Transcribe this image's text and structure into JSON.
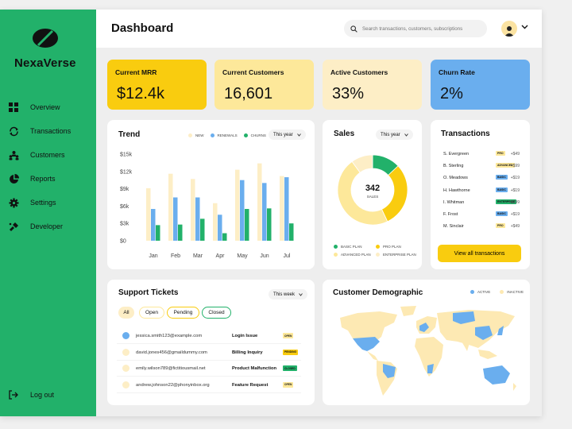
{
  "brand": {
    "name": "NexaVerse"
  },
  "sidebar": {
    "items": [
      {
        "label": "Overview",
        "icon": "grid-icon"
      },
      {
        "label": "Transactions",
        "icon": "transactions-icon"
      },
      {
        "label": "Customers",
        "icon": "customers-icon"
      },
      {
        "label": "Reports",
        "icon": "reports-icon"
      },
      {
        "label": "Settings",
        "icon": "gear-icon"
      },
      {
        "label": "Developer",
        "icon": "developer-icon"
      }
    ],
    "logout_label": "Log out"
  },
  "header": {
    "title": "Dashboard",
    "search_placeholder": "Search transactions, customers, subscriptions"
  },
  "stats": [
    {
      "label": "Current MRR",
      "value": "$12.4k",
      "color": "#f9cc0f"
    },
    {
      "label": "Current Customers",
      "value": "16,601",
      "color": "#fde89a"
    },
    {
      "label": "Active Customers",
      "value": "33%",
      "color": "#fdeec6"
    },
    {
      "label": "Churn Rate",
      "value": "2%",
      "color": "#6aaeee"
    }
  ],
  "trend": {
    "title": "Trend",
    "period": "This year",
    "legend": [
      "NEW",
      "RENEWALS",
      "CHURNS"
    ]
  },
  "chart_data": [
    {
      "type": "bar",
      "title": "Trend",
      "categories": [
        "Jan",
        "Feb",
        "Mar",
        "Apr",
        "May",
        "Jun",
        "Jul"
      ],
      "yticks": [
        "$0",
        "$3k",
        "$6k",
        "$9k",
        "$12k",
        "$15k"
      ],
      "ylim": [
        0,
        15000
      ],
      "series": [
        {
          "name": "NEW",
          "color": "#fdeec6",
          "values": [
            9100,
            11600,
            10700,
            6500,
            12300,
            13400,
            11200
          ]
        },
        {
          "name": "RENEWALS",
          "color": "#6aaeee",
          "values": [
            5500,
            7500,
            7500,
            4500,
            10500,
            10000,
            11000
          ]
        },
        {
          "name": "CHURNS",
          "color": "#22b16a",
          "values": [
            2700,
            2800,
            3800,
            1300,
            5500,
            5600,
            3000
          ]
        }
      ],
      "legend_position": "top-right",
      "grid": false
    },
    {
      "type": "pie",
      "title": "Sales",
      "center_value": "342",
      "center_label": "SALES",
      "categories": [
        "BASIC PLAN",
        "PRO PLAN",
        "ADVANCED PLAN",
        "ENTERPRISE PLAN"
      ],
      "values": [
        13,
        30,
        47,
        10
      ],
      "colors": [
        "#22b16a",
        "#f9cc0f",
        "#fde89a",
        "#fdeec6"
      ]
    }
  ],
  "sales": {
    "title": "Sales",
    "period": "This year",
    "legend": [
      "BASIC PLAN",
      "PRO PLAN",
      "ADVANCED PLAN",
      "ENTERPRISE PLAN"
    ]
  },
  "transactions": {
    "title": "Transactions",
    "button": "View all transactions",
    "rows": [
      {
        "name": "S. Evergreen",
        "plan": "PRO",
        "amount": "+$49",
        "color": "#fde89a"
      },
      {
        "name": "B. Sterling",
        "plan": "ADVANCED",
        "amount": "+$99",
        "color": "#fde89a"
      },
      {
        "name": "O. Meadows",
        "plan": "BASIC",
        "amount": "+$19",
        "color": "#6aaeee"
      },
      {
        "name": "H. Hawthorne",
        "plan": "BASIC",
        "amount": "+$19",
        "color": "#6aaeee"
      },
      {
        "name": "I. Whitman",
        "plan": "ENTERPRISE",
        "amount": "+$299",
        "color": "#22b16a"
      },
      {
        "name": "F. Frost",
        "plan": "BASIC",
        "amount": "+$19",
        "color": "#6aaeee"
      },
      {
        "name": "M. Sinclair",
        "plan": "PRO",
        "amount": "+$49",
        "color": "#fde89a"
      }
    ]
  },
  "tickets": {
    "title": "Support Tickets",
    "period": "This week",
    "filters": [
      "All",
      "Open",
      "Pending",
      "Closed"
    ],
    "rows": [
      {
        "email": "jessica.smith123@example.com",
        "issue": "Login Issue",
        "status": "OPEN",
        "dot": "#6aaeee",
        "badge": "#fde89a"
      },
      {
        "email": "david.jones456@gmaildummy.com",
        "issue": "Billing Inquiry",
        "status": "PENDING",
        "dot": "#fdeec6",
        "badge": "#f9cc0f"
      },
      {
        "email": "emily.wilson789@fictitiousmail.net",
        "issue": "Product Malfunction",
        "status": "CLOSED",
        "dot": "#fdeec6",
        "badge": "#22b16a"
      },
      {
        "email": "andrew.johnson22@phonyinbox.org",
        "issue": "Feature Request",
        "status": "OPEN",
        "dot": "#fdeec6",
        "badge": "#fde89a"
      }
    ]
  },
  "demographic": {
    "title": "Customer Demographic",
    "legend": [
      "ACTIVE",
      "INACTIVE"
    ],
    "colors": {
      "active": "#6aaeee",
      "inactive": "#fde9b3"
    }
  }
}
